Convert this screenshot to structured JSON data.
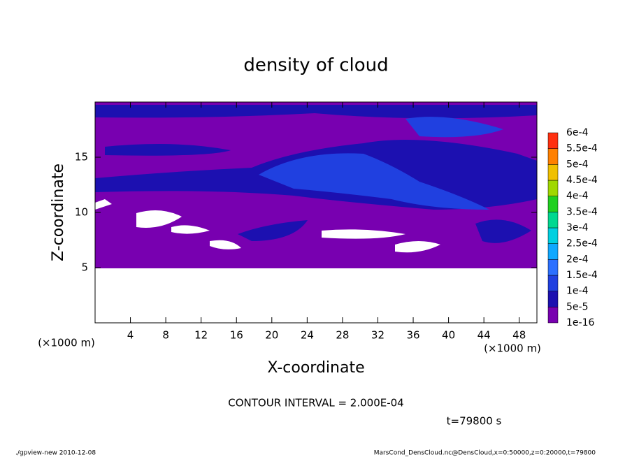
{
  "chart_data": {
    "type": "contour",
    "title": "density of cloud",
    "x_label": "X-coordinate",
    "y_label": "Z-coordinate",
    "x_unit": "(×1000 m)",
    "y_unit": "(×1000 m)",
    "xlim": [
      0,
      50
    ],
    "ylim": [
      0,
      20
    ],
    "xticks": [
      4,
      8,
      12,
      16,
      20,
      24,
      28,
      32,
      36,
      40,
      44,
      48
    ],
    "yticks": [
      5,
      10,
      15
    ],
    "levels": [
      {
        "value": 1e-16,
        "label": "1e-16"
      },
      {
        "value": 5e-05,
        "label": "5e-5"
      },
      {
        "value": 0.0001,
        "label": "1e-4"
      },
      {
        "value": 0.00015,
        "label": "1.5e-4"
      },
      {
        "value": 0.0002,
        "label": "2e-4"
      },
      {
        "value": 0.00025,
        "label": "2.5e-4"
      },
      {
        "value": 0.0003,
        "label": "3e-4"
      },
      {
        "value": 0.00035,
        "label": "3.5e-4"
      },
      {
        "value": 0.0004,
        "label": "4e-4"
      },
      {
        "value": 0.00045,
        "label": "4.5e-4"
      },
      {
        "value": 0.0005,
        "label": "5e-4"
      },
      {
        "value": 0.00055,
        "label": "5.5e-4"
      },
      {
        "value": 0.0006,
        "label": "6e-4"
      }
    ],
    "level_colors": [
      "#7800b0",
      "#1c10b0",
      "#2040e0",
      "#2c70ff",
      "#10a8ff",
      "#00d0e0",
      "#00d890",
      "#20d020",
      "#a0d800",
      "#f0c000",
      "#ff8000",
      "#ff3010"
    ],
    "contour_interval": "CONTOUR INTERVAL = 2.000E-04",
    "time_label": "t=79800 s",
    "footer_left": "./gpview-new  2010-12-08",
    "footer_right": "MarsCond_DensCloud.nc@DensCloud,x=0:50000,z=0:20000,t=79800"
  }
}
